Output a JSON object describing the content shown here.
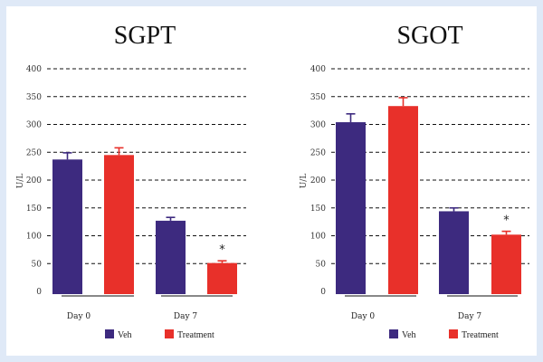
{
  "chart_data": [
    {
      "type": "bar",
      "title": "SGPT",
      "ylabel": "U/L",
      "ylim": [
        0,
        400
      ],
      "yticks": [
        0,
        50,
        100,
        150,
        200,
        250,
        300,
        350,
        400
      ],
      "grid": true,
      "groups": [
        "Day 0",
        "Day 7"
      ],
      "series": [
        {
          "name": "Veh",
          "color": "#3d2a7f",
          "values": [
            237,
            127
          ],
          "errors": [
            12,
            6
          ],
          "significance": [
            "",
            ""
          ]
        },
        {
          "name": "Treatment",
          "color": "#e8302a",
          "values": [
            245,
            51
          ],
          "errors": [
            13,
            4
          ],
          "significance": [
            "",
            "*"
          ]
        }
      ]
    },
    {
      "type": "bar",
      "title": "SGOT",
      "ylabel": "U/L",
      "ylim": [
        0,
        400
      ],
      "yticks": [
        0,
        50,
        100,
        150,
        200,
        250,
        300,
        350,
        400
      ],
      "grid": true,
      "groups": [
        "Day 0",
        "Day 7"
      ],
      "series": [
        {
          "name": "Veh",
          "color": "#3d2a7f",
          "values": [
            304,
            144
          ],
          "errors": [
            15,
            6
          ],
          "significance": [
            "",
            ""
          ]
        },
        {
          "name": "Treatment",
          "color": "#e8302a",
          "values": [
            333,
            102
          ],
          "errors": [
            15,
            6
          ],
          "significance": [
            "",
            "*"
          ]
        }
      ]
    }
  ],
  "legend": {
    "position": "bottom",
    "items": [
      {
        "label": "Veh",
        "color": "#3d2a7f"
      },
      {
        "label": "Treatment",
        "color": "#e8302a"
      }
    ]
  }
}
